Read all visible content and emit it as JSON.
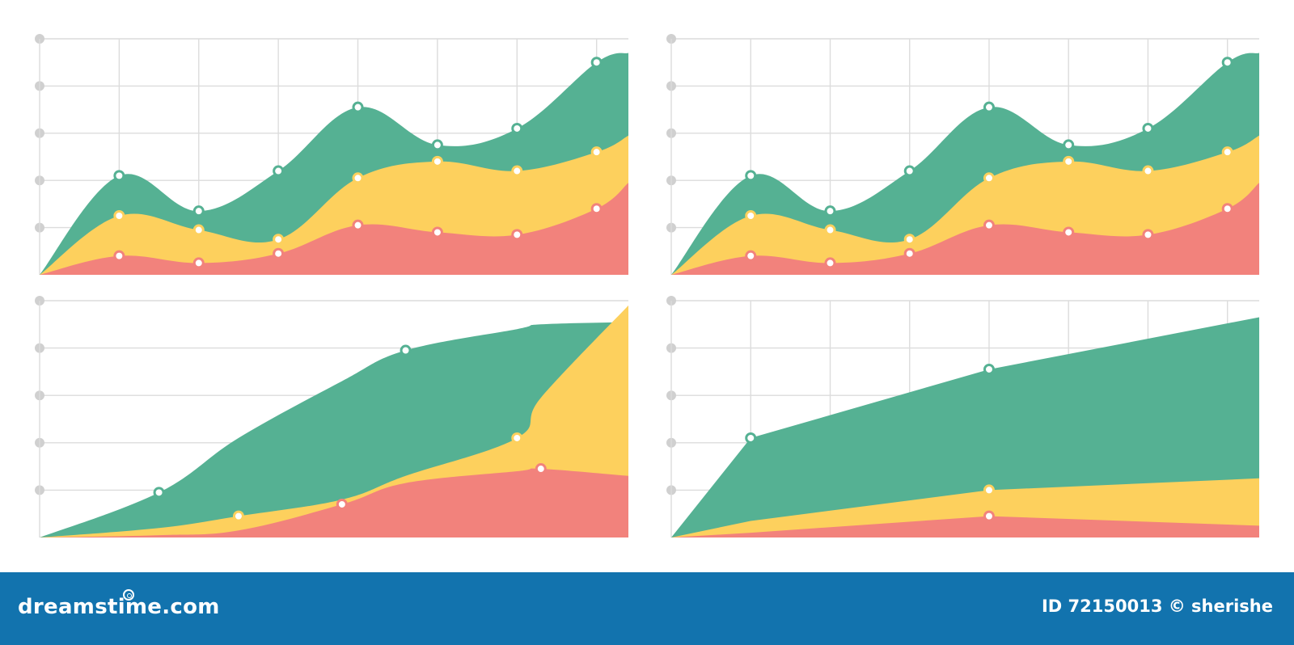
{
  "colors": {
    "green": "#55b193",
    "yellow": "#fdd05d",
    "red": "#f2827c",
    "grid": "#dcdcdc",
    "axis_dot": "#d0d0d0",
    "footer_bg": "#1273ae"
  },
  "chart_data": [
    {
      "type": "area",
      "stacked": false,
      "smooth": true,
      "grid": true,
      "x": [
        0,
        1,
        2,
        3,
        4,
        5,
        6,
        7,
        7.4
      ],
      "ylim": [
        0,
        5
      ],
      "series": [
        {
          "color": "green",
          "values": [
            0,
            2.1,
            1.35,
            2.2,
            3.55,
            2.75,
            3.1,
            4.5,
            4.7
          ],
          "markers": [
            1,
            2,
            3,
            4,
            5,
            6,
            7
          ]
        },
        {
          "color": "yellow",
          "values": [
            0,
            1.25,
            0.95,
            0.75,
            2.05,
            2.4,
            2.2,
            2.6,
            2.95
          ],
          "markers": [
            1,
            2,
            3,
            4,
            5,
            6,
            7
          ]
        },
        {
          "color": "red",
          "values": [
            0,
            0.4,
            0.25,
            0.45,
            1.05,
            0.9,
            0.85,
            1.4,
            1.95
          ],
          "markers": [
            1,
            2,
            3,
            4,
            5,
            6,
            7
          ]
        }
      ]
    },
    {
      "type": "area",
      "stacked": false,
      "smooth": true,
      "grid": true,
      "x": [
        0,
        1,
        2,
        3,
        4,
        5,
        6,
        7,
        7.4
      ],
      "ylim": [
        0,
        5
      ],
      "series": [
        {
          "color": "green",
          "values": [
            0,
            2.1,
            1.35,
            2.2,
            3.55,
            2.75,
            3.1,
            4.5,
            4.7
          ],
          "markers": [
            1,
            2,
            3,
            4,
            5,
            6,
            7
          ]
        },
        {
          "color": "yellow",
          "values": [
            0,
            1.25,
            0.95,
            0.75,
            2.05,
            2.4,
            2.2,
            2.6,
            2.95
          ],
          "markers": [
            1,
            2,
            3,
            4,
            5,
            6,
            7
          ]
        },
        {
          "color": "red",
          "values": [
            0,
            0.4,
            0.25,
            0.45,
            1.05,
            0.9,
            0.85,
            1.4,
            1.95
          ],
          "markers": [
            1,
            2,
            3,
            4,
            5,
            6,
            7
          ]
        }
      ]
    },
    {
      "type": "area",
      "stacked": false,
      "smooth": true,
      "grid": true,
      "vertical_grid": false,
      "x": [
        0,
        1.5,
        2.5,
        3.8,
        4.6,
        6,
        6.3,
        7.4
      ],
      "ylim": [
        0,
        5
      ],
      "series": [
        {
          "color": "green",
          "values": [
            0,
            0.95,
            2.1,
            3.3,
            3.95,
            4.4,
            4.5,
            4.55
          ],
          "markers": [
            1,
            4
          ]
        },
        {
          "color": "yellow",
          "values": [
            0,
            0.2,
            0.45,
            0.8,
            1.3,
            2.1,
            2.95,
            4.9
          ],
          "markers": [
            2,
            5
          ]
        },
        {
          "color": "red",
          "values": [
            0,
            0.05,
            0.15,
            0.7,
            1.15,
            1.4,
            1.45,
            1.3
          ],
          "markers": [
            3,
            6
          ]
        }
      ]
    },
    {
      "type": "area",
      "stacked": false,
      "smooth": false,
      "grid": true,
      "x": [
        0,
        1,
        4,
        7.4
      ],
      "ylim": [
        0,
        5
      ],
      "series": [
        {
          "color": "green",
          "values": [
            0,
            2.1,
            3.55,
            4.65
          ],
          "markers": [
            1,
            2
          ]
        },
        {
          "color": "yellow",
          "values": [
            0,
            0.35,
            1.0,
            1.25
          ],
          "markers": [
            2
          ]
        },
        {
          "color": "red",
          "values": [
            0,
            0.1,
            0.45,
            0.25
          ],
          "markers": [
            2
          ]
        }
      ]
    }
  ],
  "footer": {
    "brand": "dreamstime.com",
    "credit": "ID 72150013 © sherishe"
  }
}
